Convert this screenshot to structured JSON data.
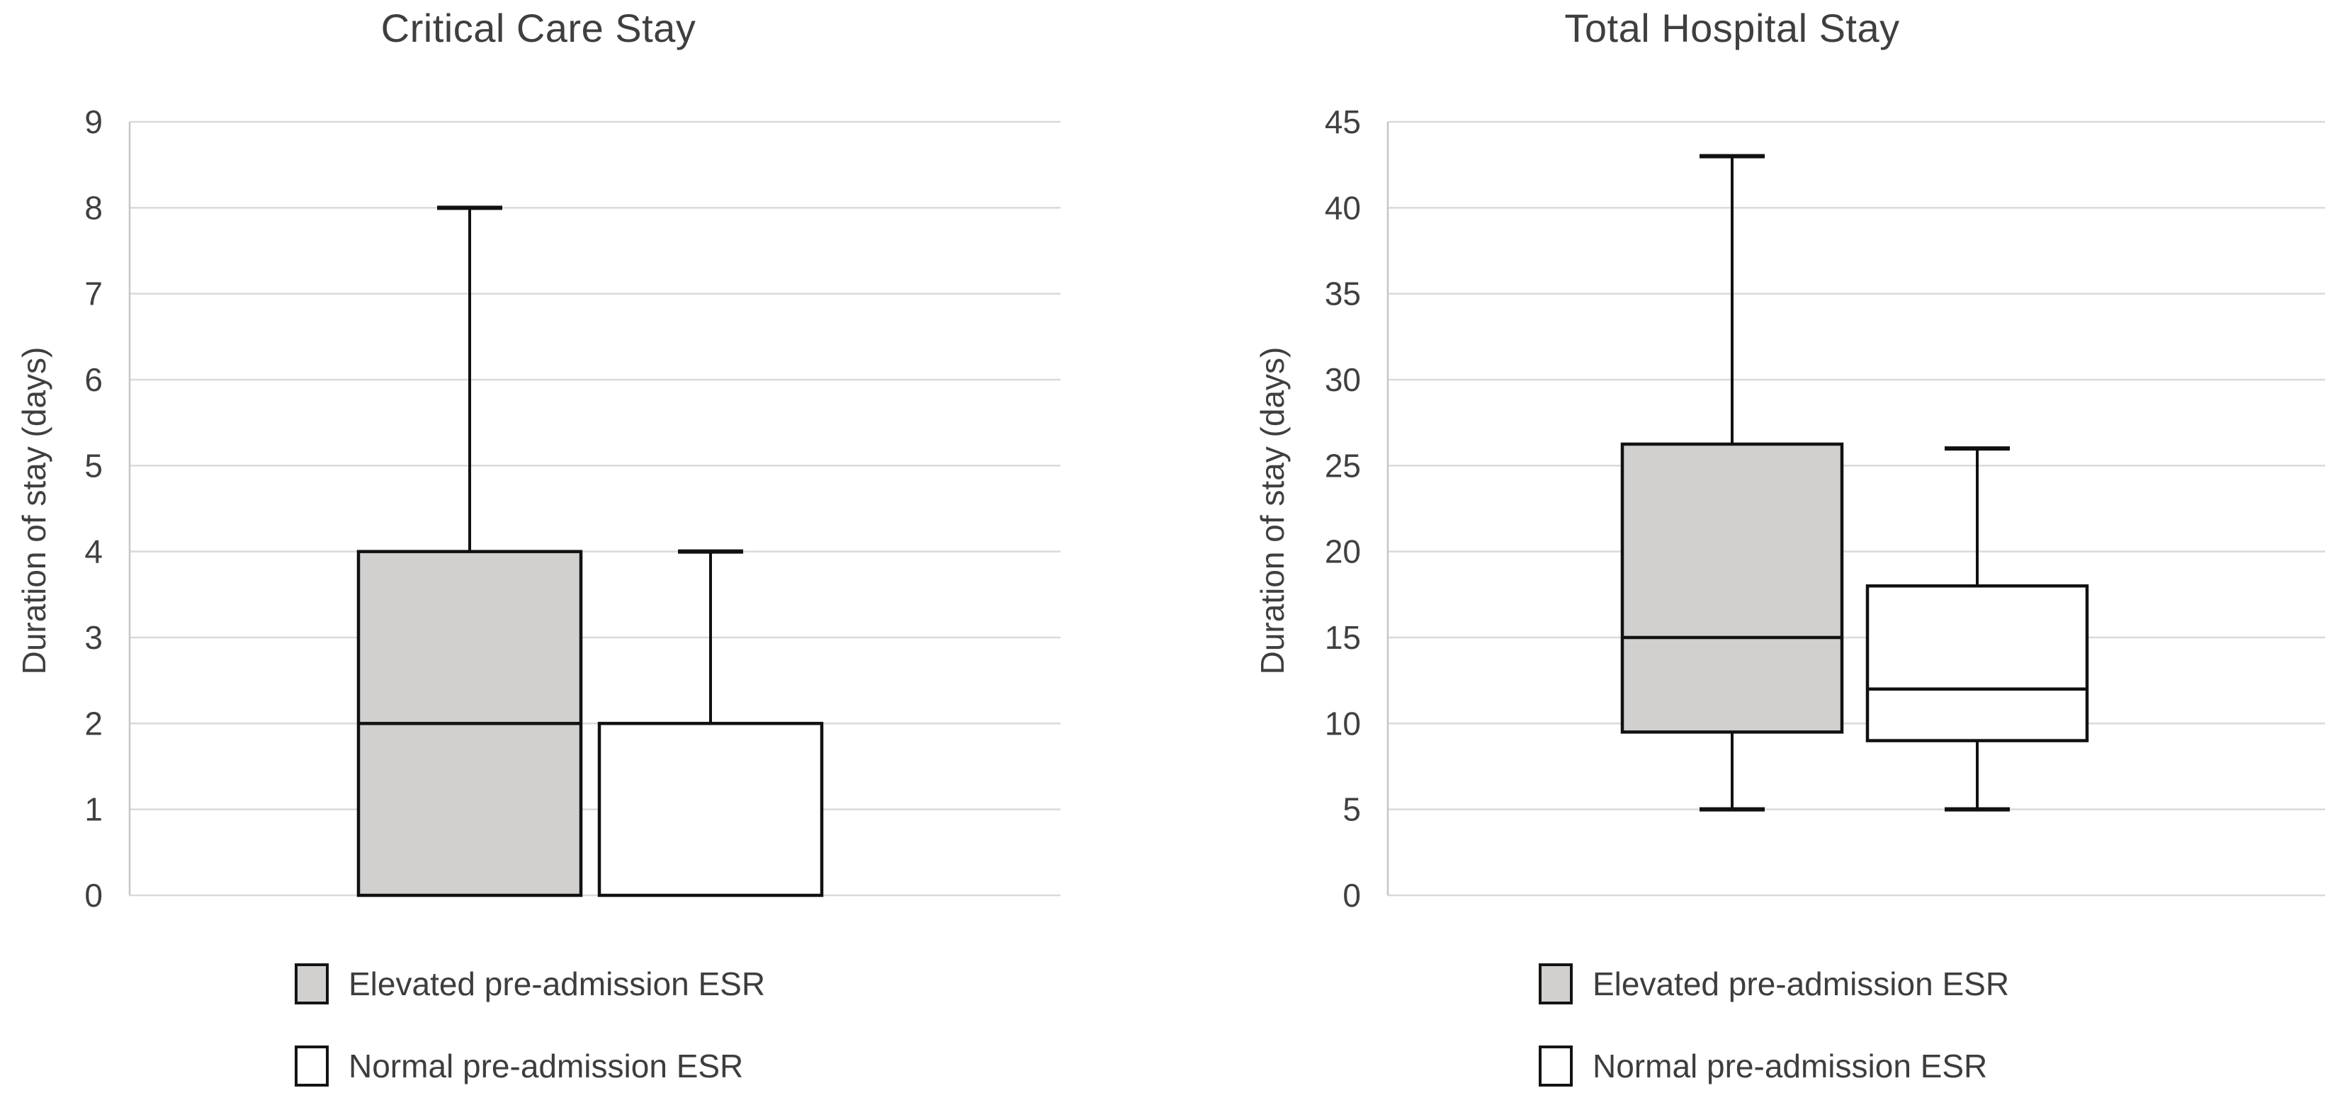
{
  "figure": {
    "background": "#ffffff",
    "text_color": "#404040",
    "title_color": "#3f3f3f",
    "grid_color": "#d9d9d9",
    "axis_line_color": "#c6c6c6",
    "box_stroke_color": "#111111",
    "elevated_fill": "#d1d0ce",
    "normal_fill": "#ffffff"
  },
  "legend": {
    "elevated": "Elevated pre-admission ESR",
    "normal": "Normal pre-admission ESR"
  },
  "chart_data": [
    {
      "type": "boxplot",
      "title": "Critical Care Stay",
      "xlabel": "",
      "ylabel": "Duration of stay (days)",
      "ylim": [
        0,
        9
      ],
      "yticks": [
        0,
        1,
        2,
        3,
        4,
        5,
        6,
        7,
        8,
        9
      ],
      "grid": true,
      "legend_position": "bottom",
      "series": [
        {
          "name": "Elevated pre-admission ESR",
          "min": 0,
          "q1": 0,
          "median": 2,
          "q3": 4,
          "max": 8,
          "fill": "#d1d0ce"
        },
        {
          "name": "Normal pre-admission ESR",
          "min": 0,
          "q1": 0,
          "median": null,
          "q3": 2,
          "max": 4,
          "fill": "#ffffff"
        }
      ]
    },
    {
      "type": "boxplot",
      "title": "Total Hospital Stay",
      "xlabel": "",
      "ylabel": "Duration of stay (days)",
      "ylim": [
        0,
        45
      ],
      "yticks": [
        0,
        5,
        10,
        15,
        20,
        25,
        30,
        35,
        40,
        45
      ],
      "grid": true,
      "legend_position": "bottom",
      "series": [
        {
          "name": "Elevated pre-admission ESR",
          "min": 5,
          "q1": 9.5,
          "median": 15,
          "q3": 26.25,
          "max": 43,
          "fill": "#d1d0ce"
        },
        {
          "name": "Normal pre-admission ESR",
          "min": 5,
          "q1": 9,
          "median": 12,
          "q3": 18,
          "max": 26,
          "fill": "#ffffff"
        }
      ]
    }
  ]
}
